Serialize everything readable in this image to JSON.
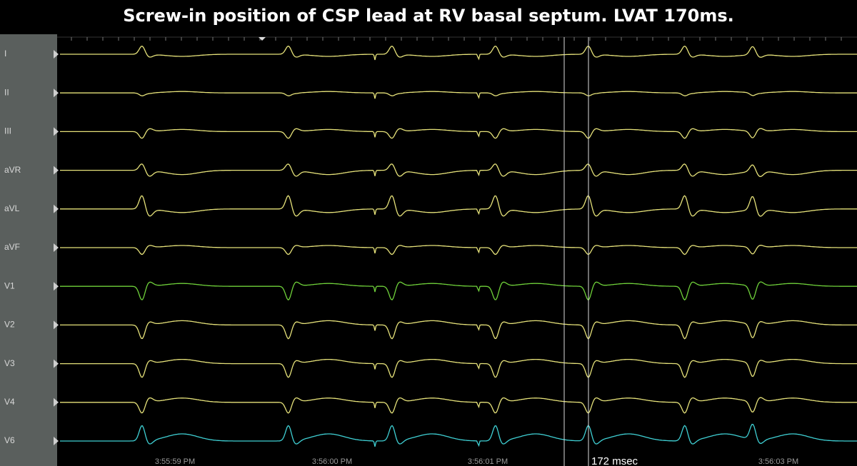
{
  "header": {
    "title": "Screw-in position of CSP lead at RV basal septum. LVAT 170ms."
  },
  "leads": [
    "I",
    "II",
    "III",
    "aVR",
    "aVL",
    "aVF",
    "V1",
    "V2",
    "V3",
    "V4",
    "V6"
  ],
  "timestamps": [
    "3:55:59 PM",
    "3:56:00 PM",
    "3:56:01 PM",
    "3:56:03 PM"
  ],
  "caliper": {
    "label": "172 msec"
  }
}
